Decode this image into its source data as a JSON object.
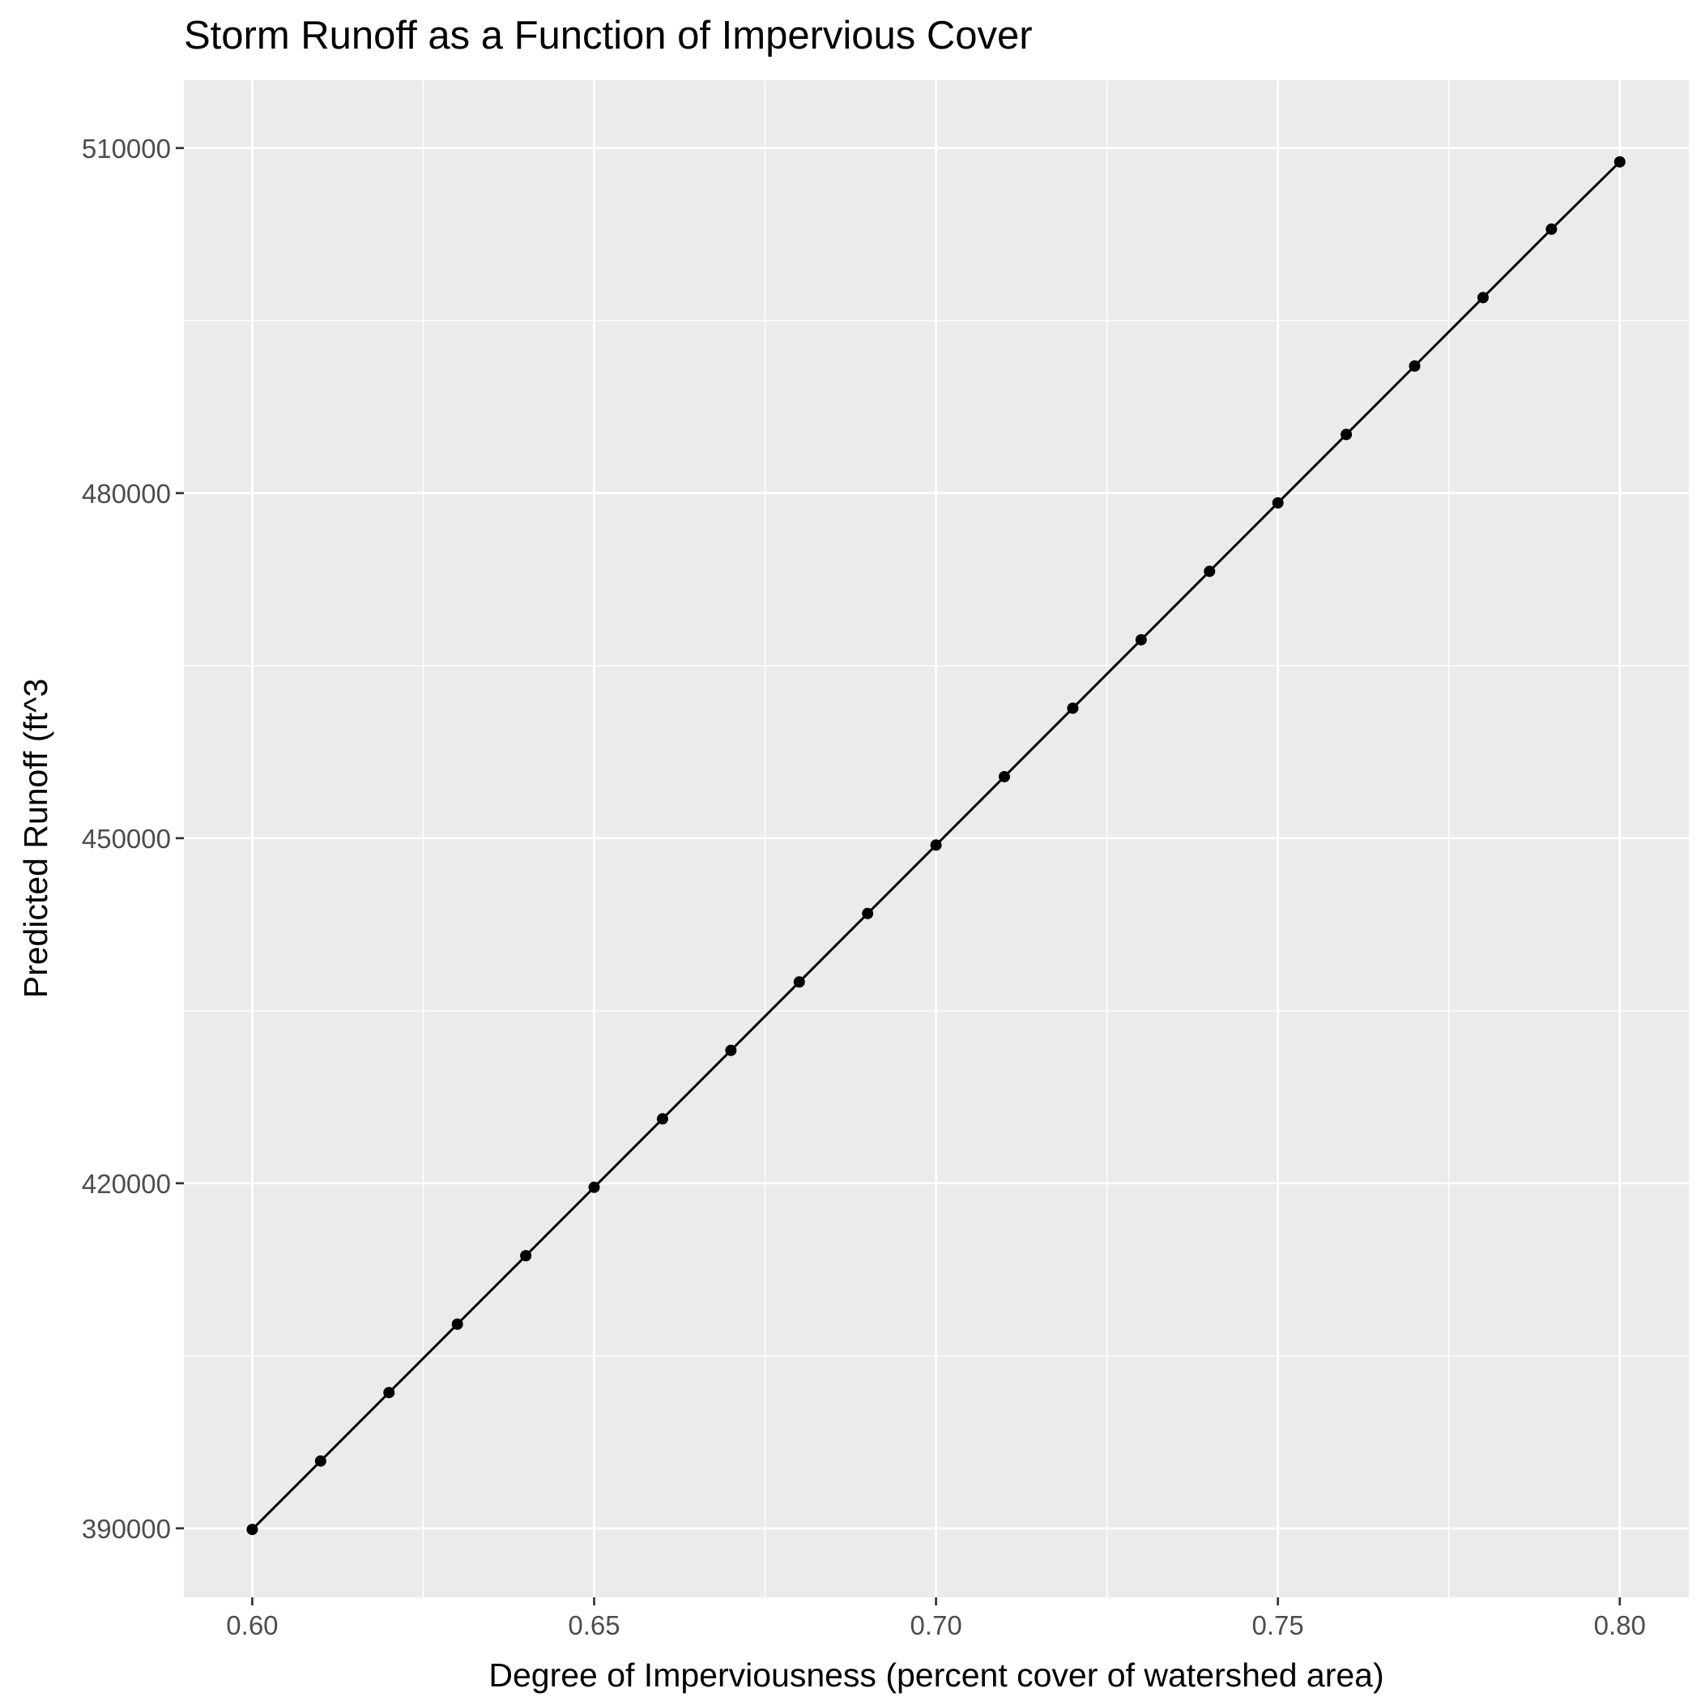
{
  "chart_data": {
    "type": "line",
    "title": "Storm Runoff as a Function of Impervious Cover",
    "xlabel": "Degree of Imperviousness (percent cover of watershed area)",
    "ylabel": "Predicted Runoff (ft^3",
    "xlim": [
      0.59,
      0.8101
    ],
    "ylim": [
      384000,
      515900
    ],
    "x_ticks": [
      0.6,
      0.65,
      0.7,
      0.75,
      0.8
    ],
    "x_tick_labels": [
      "0.60",
      "0.65",
      "0.70",
      "0.75",
      "0.80"
    ],
    "x_minor_ticks": [
      0.625,
      0.675,
      0.725,
      0.775
    ],
    "y_ticks": [
      390000,
      420000,
      450000,
      480000,
      510000
    ],
    "y_tick_labels": [
      "390000",
      "420000",
      "450000",
      "480000",
      "510000"
    ],
    "y_minor_ticks": [
      405000,
      435000,
      465000,
      495000
    ],
    "grid": true,
    "legend": "none",
    "x": [
      0.6,
      0.61,
      0.62,
      0.63,
      0.64,
      0.65,
      0.66,
      0.67,
      0.68,
      0.69,
      0.7,
      0.71,
      0.72,
      0.73,
      0.74,
      0.75,
      0.76,
      0.77,
      0.78,
      0.79,
      0.8
    ],
    "series": [
      {
        "values": [
          389900,
          395850,
          401800,
          407750,
          413700,
          419650,
          425600,
          431550,
          437500,
          443450,
          449400,
          455350,
          461300,
          467250,
          473200,
          479150,
          485100,
          491050,
          497000,
          502950,
          508800
        ]
      }
    ],
    "colors": {
      "panel": "#ebebeb",
      "grid": "#ffffff",
      "series": "#000000",
      "tick_text": "#4d4d4d",
      "title_text": "#000000"
    }
  }
}
